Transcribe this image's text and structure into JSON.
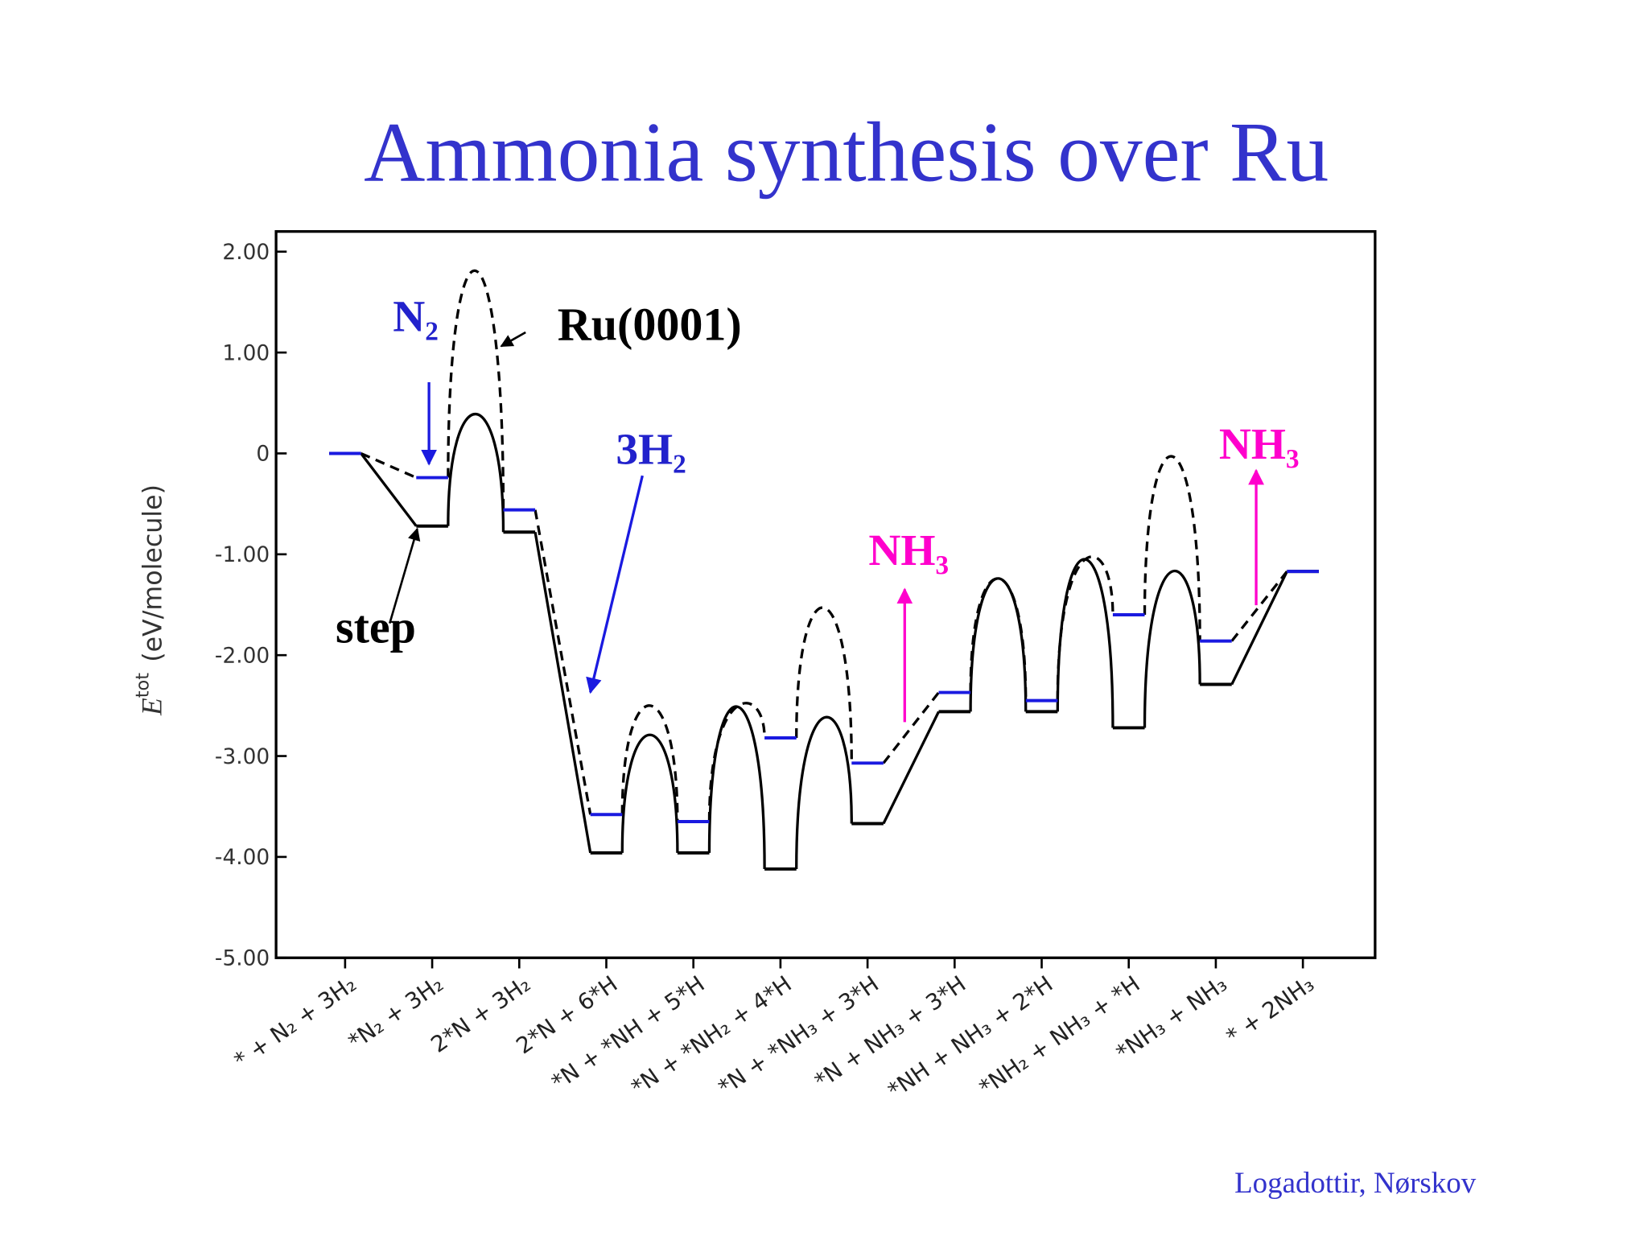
{
  "title": "Ammonia synthesis over Ru",
  "credit": "Logadottir, Nørskov",
  "chart_data": {
    "type": "energy-diagram",
    "y_label": {
      "symbol": "E",
      "superscript": "tot",
      "unit": "(eV/molecule)"
    },
    "categories": [
      "* + N₂ + 3H₂",
      "*N₂ + 3H₂",
      "2*N + 3H₂",
      "2*N + 6*H",
      "*N + *NH + 5*H",
      "*N + *NH₂ + 4*H",
      "*N + *NH₃ + 3*H",
      "*N + NH₃ + 3*H",
      "*NH + NH₃ + 2*H",
      "*NH₂ + NH₃ + *H",
      "*NH₃ + NH₃",
      "* + 2NH₃"
    ],
    "ylim": [
      -5,
      2.2
    ],
    "yticks": [
      {
        "value": 2,
        "label": "2.00"
      },
      {
        "value": 1,
        "label": "1.00"
      },
      0,
      {
        "value": -1,
        "label": "-1.00"
      },
      {
        "value": -2,
        "label": "-2.00"
      },
      {
        "value": -3,
        "label": "-3.00"
      },
      {
        "value": -4,
        "label": "-4.00"
      },
      {
        "value": -5,
        "label": "-5.00"
      }
    ],
    "series": [
      {
        "name": "step",
        "color": "#000000",
        "line": "solid",
        "values": [
          0,
          -0.72,
          -0.78,
          -3.96,
          -3.96,
          -4.12,
          -3.67,
          -2.56,
          -2.56,
          -2.72,
          -2.29,
          -1.17
        ],
        "barriers": [
          null,
          0.39,
          null,
          -2.79,
          -2.51,
          -2.62,
          null,
          -1.24,
          -1.05,
          -1.17,
          null
        ]
      },
      {
        "name": "Ru(0001)",
        "color": "#1a1ae0",
        "line": "dashed",
        "values": [
          0,
          -0.24,
          -0.56,
          -3.58,
          -3.65,
          -2.82,
          -3.07,
          -2.37,
          -2.45,
          -1.6,
          -1.86,
          -1.17
        ],
        "barriers": [
          null,
          1.81,
          null,
          -2.5,
          -2.51,
          -1.53,
          null,
          -1.24,
          -1.05,
          -0.03,
          null
        ]
      }
    ],
    "annotations": [
      {
        "text": "N₂",
        "color": "#2222cc"
      },
      {
        "text": "3H₂",
        "color": "#2222cc"
      },
      {
        "text": "NH₃",
        "color": "#ff00cc"
      },
      {
        "text": "NH₃",
        "color": "#ff00cc"
      }
    ]
  }
}
